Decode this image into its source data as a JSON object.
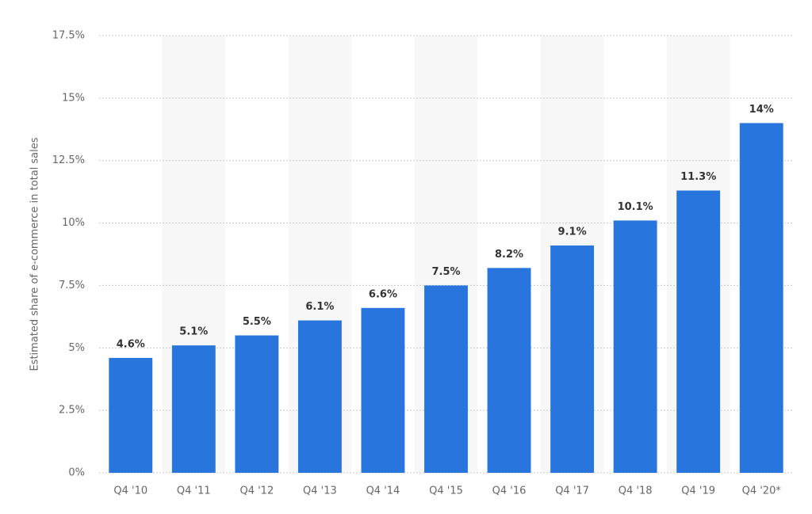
{
  "chart_data": {
    "type": "bar",
    "y_label": "Estimated share of e-commerce in total sales",
    "categories": [
      "Q4 '10",
      "Q4 '11",
      "Q4 '12",
      "Q4 '13",
      "Q4 '14",
      "Q4 '15",
      "Q4 '16",
      "Q4 '17",
      "Q4 '18",
      "Q4 '19",
      "Q4 '20*"
    ],
    "values": [
      4.6,
      5.1,
      5.5,
      6.1,
      6.6,
      7.5,
      8.2,
      9.1,
      10.1,
      11.3,
      14
    ],
    "value_labels": [
      "4.6%",
      "5.1%",
      "5.5%",
      "6.1%",
      "6.6%",
      "7.5%",
      "8.2%",
      "9.1%",
      "10.1%",
      "11.3%",
      "14%"
    ],
    "color": "#2876dd",
    "ylim": [
      0,
      17.5
    ],
    "yticks": [
      {
        "value": 0,
        "label": "0%"
      },
      {
        "value": 2.5,
        "label": "2.5%"
      },
      {
        "value": 5,
        "label": "5%"
      },
      {
        "value": 7.5,
        "label": "7.5%"
      },
      {
        "value": 10,
        "label": "10%"
      },
      {
        "value": 12.5,
        "label": "12.5%"
      },
      {
        "value": 15,
        "label": "15%"
      },
      {
        "value": 17.5,
        "label": "17.5%"
      }
    ],
    "grid": true
  }
}
